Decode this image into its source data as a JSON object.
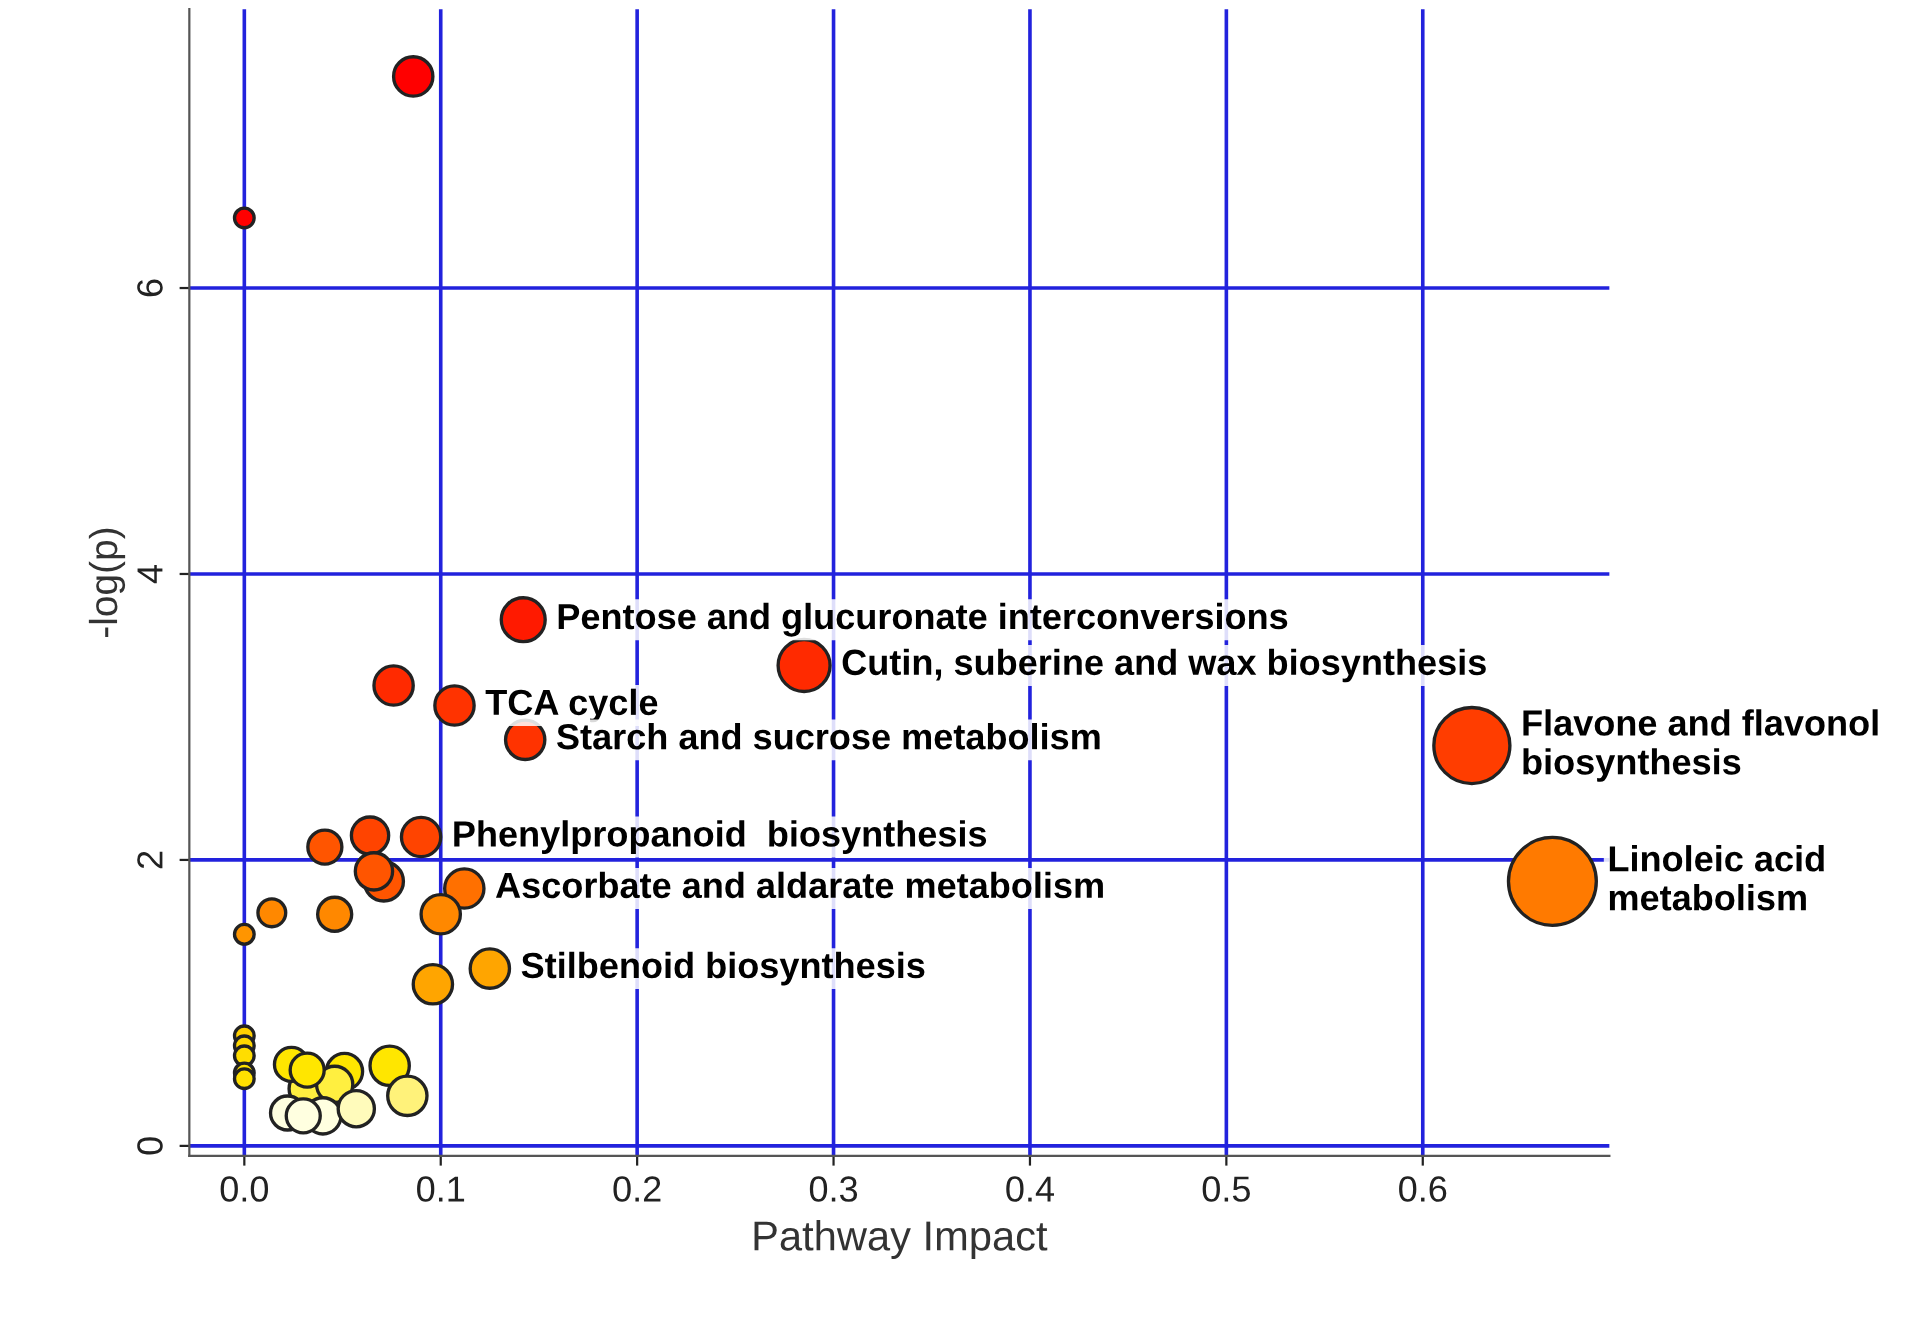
{
  "chart_data": {
    "type": "bubble",
    "xlabel": "Pathway Impact",
    "ylabel": "-log(p)",
    "x": [
      0.086,
      0.0,
      0.142,
      0.285,
      0.076,
      0.107,
      0.143,
      0.625,
      0.09,
      0.064,
      0.041,
      0.066,
      0.071,
      0.112,
      0.1,
      0.014,
      0.046,
      0.0,
      0.666,
      0.125,
      0.096,
      0.0,
      0.0,
      0.0,
      0.0,
      0.0,
      0.024,
      0.032,
      0.051,
      0.074,
      0.032,
      0.046,
      0.083,
      0.022,
      0.03,
      0.04,
      0.057
    ],
    "values": [
      7.48,
      6.49,
      3.68,
      3.36,
      3.22,
      3.08,
      2.84,
      2.8,
      2.16,
      2.17,
      2.09,
      1.92,
      1.85,
      1.8,
      1.62,
      1.63,
      1.62,
      1.48,
      1.85,
      1.24,
      1.13,
      0.77,
      0.7,
      0.63,
      0.51,
      0.47,
      0.57,
      0.53,
      0.52,
      0.56,
      0.4,
      0.43,
      0.35,
      0.23,
      0.21,
      0.21,
      0.26
    ],
    "sizes": [
      0.2,
      0.05,
      0.25,
      0.35,
      0.2,
      0.2,
      0.2,
      0.75,
      0.2,
      0.18,
      0.15,
      0.18,
      0.2,
      0.2,
      0.2,
      0.1,
      0.15,
      0.05,
      1,
      0.2,
      0.2,
      0.05,
      0.05,
      0.05,
      0.05,
      0.05,
      0.15,
      0.15,
      0.17,
      0.2,
      0.17,
      0.17,
      0.2,
      0.15,
      0.15,
      0.17,
      0.17
    ],
    "colors": [
      "#ff0000",
      "#ff0000",
      "#ff1a00",
      "#ff2a00",
      "#ff2a00",
      "#ff3300",
      "#ff3300",
      "#ff3d00",
      "#ff4400",
      "#ff4400",
      "#ff5500",
      "#ff5500",
      "#ff5500",
      "#ff7000",
      "#ff8800",
      "#ff8800",
      "#ff8800",
      "#ff9500",
      "#ff7a00",
      "#ffa500",
      "#ffa500",
      "#ffd000",
      "#ffd700",
      "#ffdd00",
      "#ffe000",
      "#ffe000",
      "#ffe600",
      "#ffe600",
      "#ffe600",
      "#ffe600",
      "#ffef40",
      "#ffef40",
      "#fff27a",
      "#ffffe0",
      "#ffffe0",
      "#ffffe0",
      "#fffbbb"
    ],
    "xlim": [
      -0.028,
      0.695
    ],
    "ylim": [
      -0.07,
      7.95
    ],
    "xticks": [
      {
        "value": 0.0,
        "label": "0.0"
      },
      0.1,
      0.2,
      0.3,
      0.4,
      0.5,
      0.6
    ],
    "yticks": [
      0,
      2,
      4,
      6
    ],
    "grid": true,
    "marker": "circle",
    "annotations": [
      {
        "text": "Pentose and glucuronate interconversions",
        "x": 0.142,
        "y": 3.68
      },
      {
        "text": "Cutin, suberine and wax biosynthesis",
        "x": 0.285,
        "y": 3.36
      },
      {
        "text": "TCA cycle",
        "x": 0.107,
        "y": 3.08
      },
      {
        "text": "Starch and sucrose metabolism",
        "x": 0.143,
        "y": 2.84
      },
      {
        "text": "Flavone and flavonol\nbiosynthesis",
        "x": 0.625,
        "y": 2.8
      },
      {
        "text": "Phenylpropanoid  biosynthesis",
        "x": 0.09,
        "y": 2.16
      },
      {
        "text": "Ascorbate and aldarate metabolism",
        "x": 0.112,
        "y": 1.8
      },
      {
        "text": "Linoleic acid\nmetabolism",
        "x": 0.666,
        "y": 1.85
      },
      {
        "text": "Stilbenoid biosynthesis",
        "x": 0.125,
        "y": 1.24
      }
    ]
  }
}
